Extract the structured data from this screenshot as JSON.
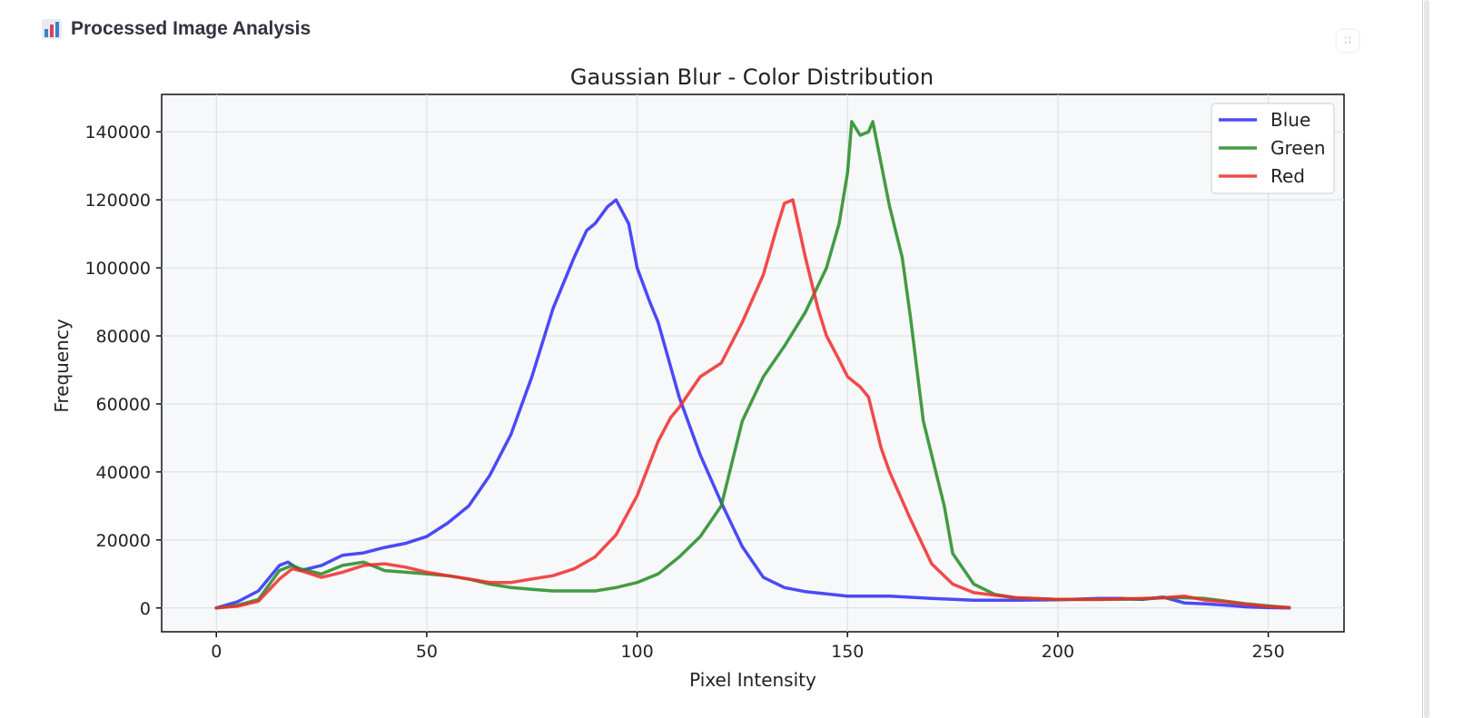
{
  "header": {
    "title": "Processed Image Analysis",
    "icon": "bar-chart-icon"
  },
  "chart_data": {
    "type": "line",
    "title": "Gaussian Blur - Color Distribution",
    "xlabel": "Pixel Intensity",
    "ylabel": "Frequency",
    "xlim": [
      -13,
      268
    ],
    "ylim": [
      -7000,
      151000
    ],
    "xticks": [
      0,
      50,
      100,
      150,
      200,
      250
    ],
    "yticks": [
      0,
      20000,
      40000,
      60000,
      80000,
      100000,
      120000,
      140000
    ],
    "grid": true,
    "legend_position": "top-right",
    "series": [
      {
        "name": "Blue",
        "color": "#2b2bf5",
        "x": [
          0,
          5,
          10,
          15,
          17,
          20,
          25,
          30,
          35,
          40,
          45,
          50,
          55,
          60,
          65,
          70,
          75,
          80,
          85,
          88,
          90,
          93,
          95,
          98,
          100,
          103,
          105,
          110,
          115,
          120,
          125,
          130,
          135,
          140,
          150,
          160,
          170,
          180,
          190,
          200,
          210,
          215,
          220,
          225,
          230,
          235,
          240,
          245,
          250,
          255
        ],
        "y": [
          0,
          1800,
          5000,
          12500,
          13500,
          11000,
          12500,
          15500,
          16200,
          17800,
          19000,
          21000,
          25000,
          30000,
          39000,
          51000,
          68000,
          88000,
          103000,
          111000,
          113000,
          118000,
          120000,
          113000,
          100000,
          90000,
          84000,
          62000,
          45000,
          31000,
          18000,
          9000,
          6000,
          4800,
          3500,
          3500,
          2800,
          2300,
          2300,
          2400,
          2800,
          2800,
          2500,
          3200,
          1500,
          1200,
          800,
          300,
          100,
          0
        ]
      },
      {
        "name": "Green",
        "color": "#228b22",
        "x": [
          0,
          5,
          10,
          15,
          18,
          20,
          25,
          30,
          35,
          40,
          45,
          50,
          55,
          60,
          65,
          70,
          75,
          80,
          85,
          90,
          95,
          100,
          105,
          110,
          115,
          120,
          125,
          130,
          135,
          140,
          145,
          148,
          150,
          151,
          153,
          155,
          156,
          160,
          163,
          165,
          168,
          170,
          173,
          175,
          180,
          185,
          190,
          200,
          210,
          220,
          225,
          230,
          235,
          240,
          245,
          250,
          255
        ],
        "y": [
          0,
          800,
          2500,
          11000,
          12500,
          11500,
          10000,
          12500,
          13500,
          11000,
          10500,
          10000,
          9500,
          8500,
          7000,
          6000,
          5500,
          5000,
          5000,
          5000,
          6000,
          7500,
          10000,
          15000,
          21000,
          30000,
          55000,
          68000,
          77000,
          87000,
          100000,
          113000,
          128000,
          143000,
          139000,
          140000,
          143000,
          118000,
          103000,
          85000,
          55000,
          45000,
          30000,
          16000,
          7000,
          4000,
          3000,
          2500,
          2500,
          2600,
          3000,
          3000,
          2800,
          2000,
          1200,
          600,
          100
        ]
      },
      {
        "name": "Red",
        "color": "#f02b2b",
        "x": [
          0,
          5,
          10,
          15,
          18,
          20,
          25,
          30,
          35,
          40,
          45,
          50,
          55,
          60,
          65,
          70,
          75,
          80,
          85,
          90,
          95,
          100,
          105,
          108,
          110,
          115,
          120,
          125,
          130,
          133,
          135,
          137,
          140,
          143,
          145,
          148,
          150,
          153,
          155,
          158,
          160,
          165,
          170,
          175,
          180,
          190,
          200,
          210,
          220,
          225,
          230,
          235,
          240,
          245,
          250,
          255
        ],
        "y": [
          0,
          500,
          2000,
          8500,
          11500,
          11000,
          9000,
          10500,
          12500,
          13000,
          12000,
          10500,
          9500,
          8500,
          7500,
          7500,
          8500,
          9500,
          11500,
          15000,
          21500,
          33000,
          49000,
          56000,
          59000,
          68000,
          72000,
          84000,
          98000,
          111000,
          119000,
          120000,
          103000,
          88000,
          80000,
          73000,
          68000,
          65000,
          62000,
          47000,
          40000,
          26000,
          13000,
          7000,
          4500,
          3000,
          2500,
          2500,
          2800,
          3000,
          3500,
          2300,
          1800,
          1000,
          400,
          100
        ]
      }
    ]
  }
}
